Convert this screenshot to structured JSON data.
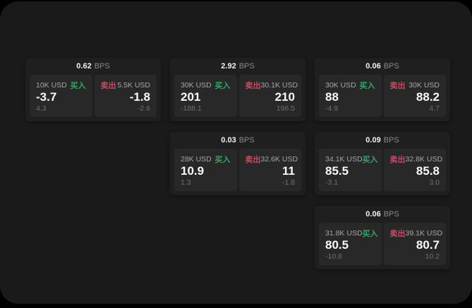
{
  "labels": {
    "buy": "买入",
    "sell": "卖出",
    "bps_unit": "BPS"
  },
  "colors": {
    "buy_green": "#2fa862",
    "sell_red": "#c74a61"
  },
  "cards": [
    {
      "bps": "0.62",
      "buy": {
        "size": "10K USD",
        "main": "-3.7",
        "sub": "4.3"
      },
      "sell": {
        "size": "5.5K USD",
        "main": "-1.8",
        "sub": "-2.6"
      }
    },
    {
      "bps": "2.92",
      "buy": {
        "size": "30K USD",
        "main": "201",
        "sub": "-188.1"
      },
      "sell": {
        "size": "30.1K USD",
        "main": "210",
        "sub": "196.5"
      }
    },
    {
      "bps": "0.06",
      "buy": {
        "size": "30K USD",
        "main": "88",
        "sub": "-4.9"
      },
      "sell": {
        "size": "30K USD",
        "main": "88.2",
        "sub": "4.7"
      }
    },
    {
      "bps": "0.03",
      "buy": {
        "size": "28K USD",
        "main": "10.9",
        "sub": "1.3"
      },
      "sell": {
        "size": "32.6K USD",
        "main": "11",
        "sub": "-1.8"
      }
    },
    {
      "bps": "0.09",
      "buy": {
        "size": "34.1K USD",
        "main": "85.5",
        "sub": "-3.1"
      },
      "sell": {
        "size": "32.8K USD",
        "main": "85.8",
        "sub": "3.0"
      }
    },
    {
      "bps": "0.06",
      "buy": {
        "size": "31.8K USD",
        "main": "80.5",
        "sub": "-10.8"
      },
      "sell": {
        "size": "39.1K USD",
        "main": "80.7",
        "sub": "10.2"
      }
    }
  ]
}
